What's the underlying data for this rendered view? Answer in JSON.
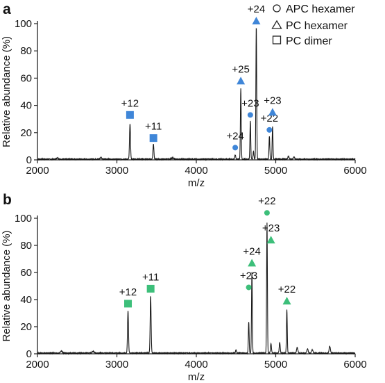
{
  "legend": [
    {
      "shape": "circle",
      "label": "APC hexamer"
    },
    {
      "shape": "triangle",
      "label": "PC hexamer"
    },
    {
      "shape": "square",
      "label": "PC dimer"
    }
  ],
  "colors": {
    "panel_a_marker": "#3f86d8",
    "panel_b_marker": "#3dbf7a",
    "trace": "#1a1a1a"
  },
  "chart_data": [
    {
      "panel": "a",
      "type": "line",
      "xlabel": "m/z",
      "ylabel": "Relative abundance (%)",
      "xlim": [
        2000,
        6000
      ],
      "ylim": [
        0,
        100
      ],
      "xticks": [
        "2000",
        "3000",
        "4000",
        "5000",
        "6000"
      ],
      "yticks": [
        "0",
        "20",
        "40",
        "60",
        "80",
        "100"
      ],
      "peaks": [
        {
          "x": 2250,
          "y": 1.0,
          "w": 10
        },
        {
          "x": 2800,
          "y": 1.2,
          "w": 10
        },
        {
          "x": 3165,
          "y": 26.0,
          "w": 6
        },
        {
          "x": 3460,
          "y": 11.0,
          "w": 6
        },
        {
          "x": 3700,
          "y": 1.0,
          "w": 12
        },
        {
          "x": 4490,
          "y": 3.0,
          "w": 6
        },
        {
          "x": 4560,
          "y": 52.0,
          "w": 5
        },
        {
          "x": 4680,
          "y": 28.0,
          "w": 5
        },
        {
          "x": 4720,
          "y": 6.0,
          "w": 5
        },
        {
          "x": 4755,
          "y": 98.0,
          "w": 5
        },
        {
          "x": 4920,
          "y": 17.0,
          "w": 5
        },
        {
          "x": 4960,
          "y": 24.0,
          "w": 5
        },
        {
          "x": 5160,
          "y": 2.0,
          "w": 8
        },
        {
          "x": 5230,
          "y": 1.5,
          "w": 8
        }
      ],
      "markers": [
        {
          "shape": "square",
          "x": 3165,
          "y": 33,
          "label": "+12"
        },
        {
          "shape": "square",
          "x": 3460,
          "y": 16,
          "label": "+11"
        },
        {
          "shape": "circle",
          "x": 4490,
          "y": 9,
          "label": "+24"
        },
        {
          "shape": "triangle",
          "x": 4560,
          "y": 58,
          "label": "+25"
        },
        {
          "shape": "circle",
          "x": 4680,
          "y": 33,
          "label": "+23"
        },
        {
          "shape": "circle",
          "x": 4920,
          "y": 22,
          "label": "+22"
        },
        {
          "shape": "triangle",
          "x": 4755,
          "y": 102,
          "label": "+24"
        },
        {
          "shape": "triangle",
          "x": 4960,
          "y": 35,
          "label": "+23"
        }
      ]
    },
    {
      "panel": "b",
      "type": "line",
      "xlabel": "m/z",
      "ylabel": "Relative abundance (%)",
      "xlim": [
        2000,
        6000
      ],
      "ylim": [
        0,
        100
      ],
      "xticks": [
        "2000",
        "3000",
        "4000",
        "5000",
        "6000"
      ],
      "yticks": [
        "0",
        "20",
        "40",
        "60",
        "80",
        "100"
      ],
      "peaks": [
        {
          "x": 2300,
          "y": 1.5,
          "w": 12
        },
        {
          "x": 2700,
          "y": 1.2,
          "w": 12
        },
        {
          "x": 3140,
          "y": 31.0,
          "w": 6
        },
        {
          "x": 3425,
          "y": 42.0,
          "w": 6
        },
        {
          "x": 4500,
          "y": 2.5,
          "w": 6
        },
        {
          "x": 4660,
          "y": 23.0,
          "w": 5
        },
        {
          "x": 4700,
          "y": 60.0,
          "w": 5
        },
        {
          "x": 4890,
          "y": 96.0,
          "w": 5
        },
        {
          "x": 4940,
          "y": 7.0,
          "w": 6
        },
        {
          "x": 5050,
          "y": 8.0,
          "w": 6
        },
        {
          "x": 5140,
          "y": 32.0,
          "w": 5
        },
        {
          "x": 5270,
          "y": 4.0,
          "w": 8
        },
        {
          "x": 5400,
          "y": 3.0,
          "w": 8
        },
        {
          "x": 5460,
          "y": 2.5,
          "w": 8
        },
        {
          "x": 5680,
          "y": 5.0,
          "w": 8
        }
      ],
      "markers": [
        {
          "shape": "square",
          "x": 3140,
          "y": 37,
          "label": "+12"
        },
        {
          "shape": "square",
          "x": 3425,
          "y": 48,
          "label": "+11"
        },
        {
          "shape": "circle",
          "x": 4660,
          "y": 49,
          "label": "+23"
        },
        {
          "shape": "triangle",
          "x": 4700,
          "y": 67,
          "label": "+24"
        },
        {
          "shape": "circle",
          "x": 4890,
          "y": 104,
          "label": "+22"
        },
        {
          "shape": "triangle",
          "x": 4940,
          "y": 84,
          "label": "+23"
        },
        {
          "shape": "triangle",
          "x": 5140,
          "y": 39,
          "label": "+22"
        }
      ]
    }
  ]
}
